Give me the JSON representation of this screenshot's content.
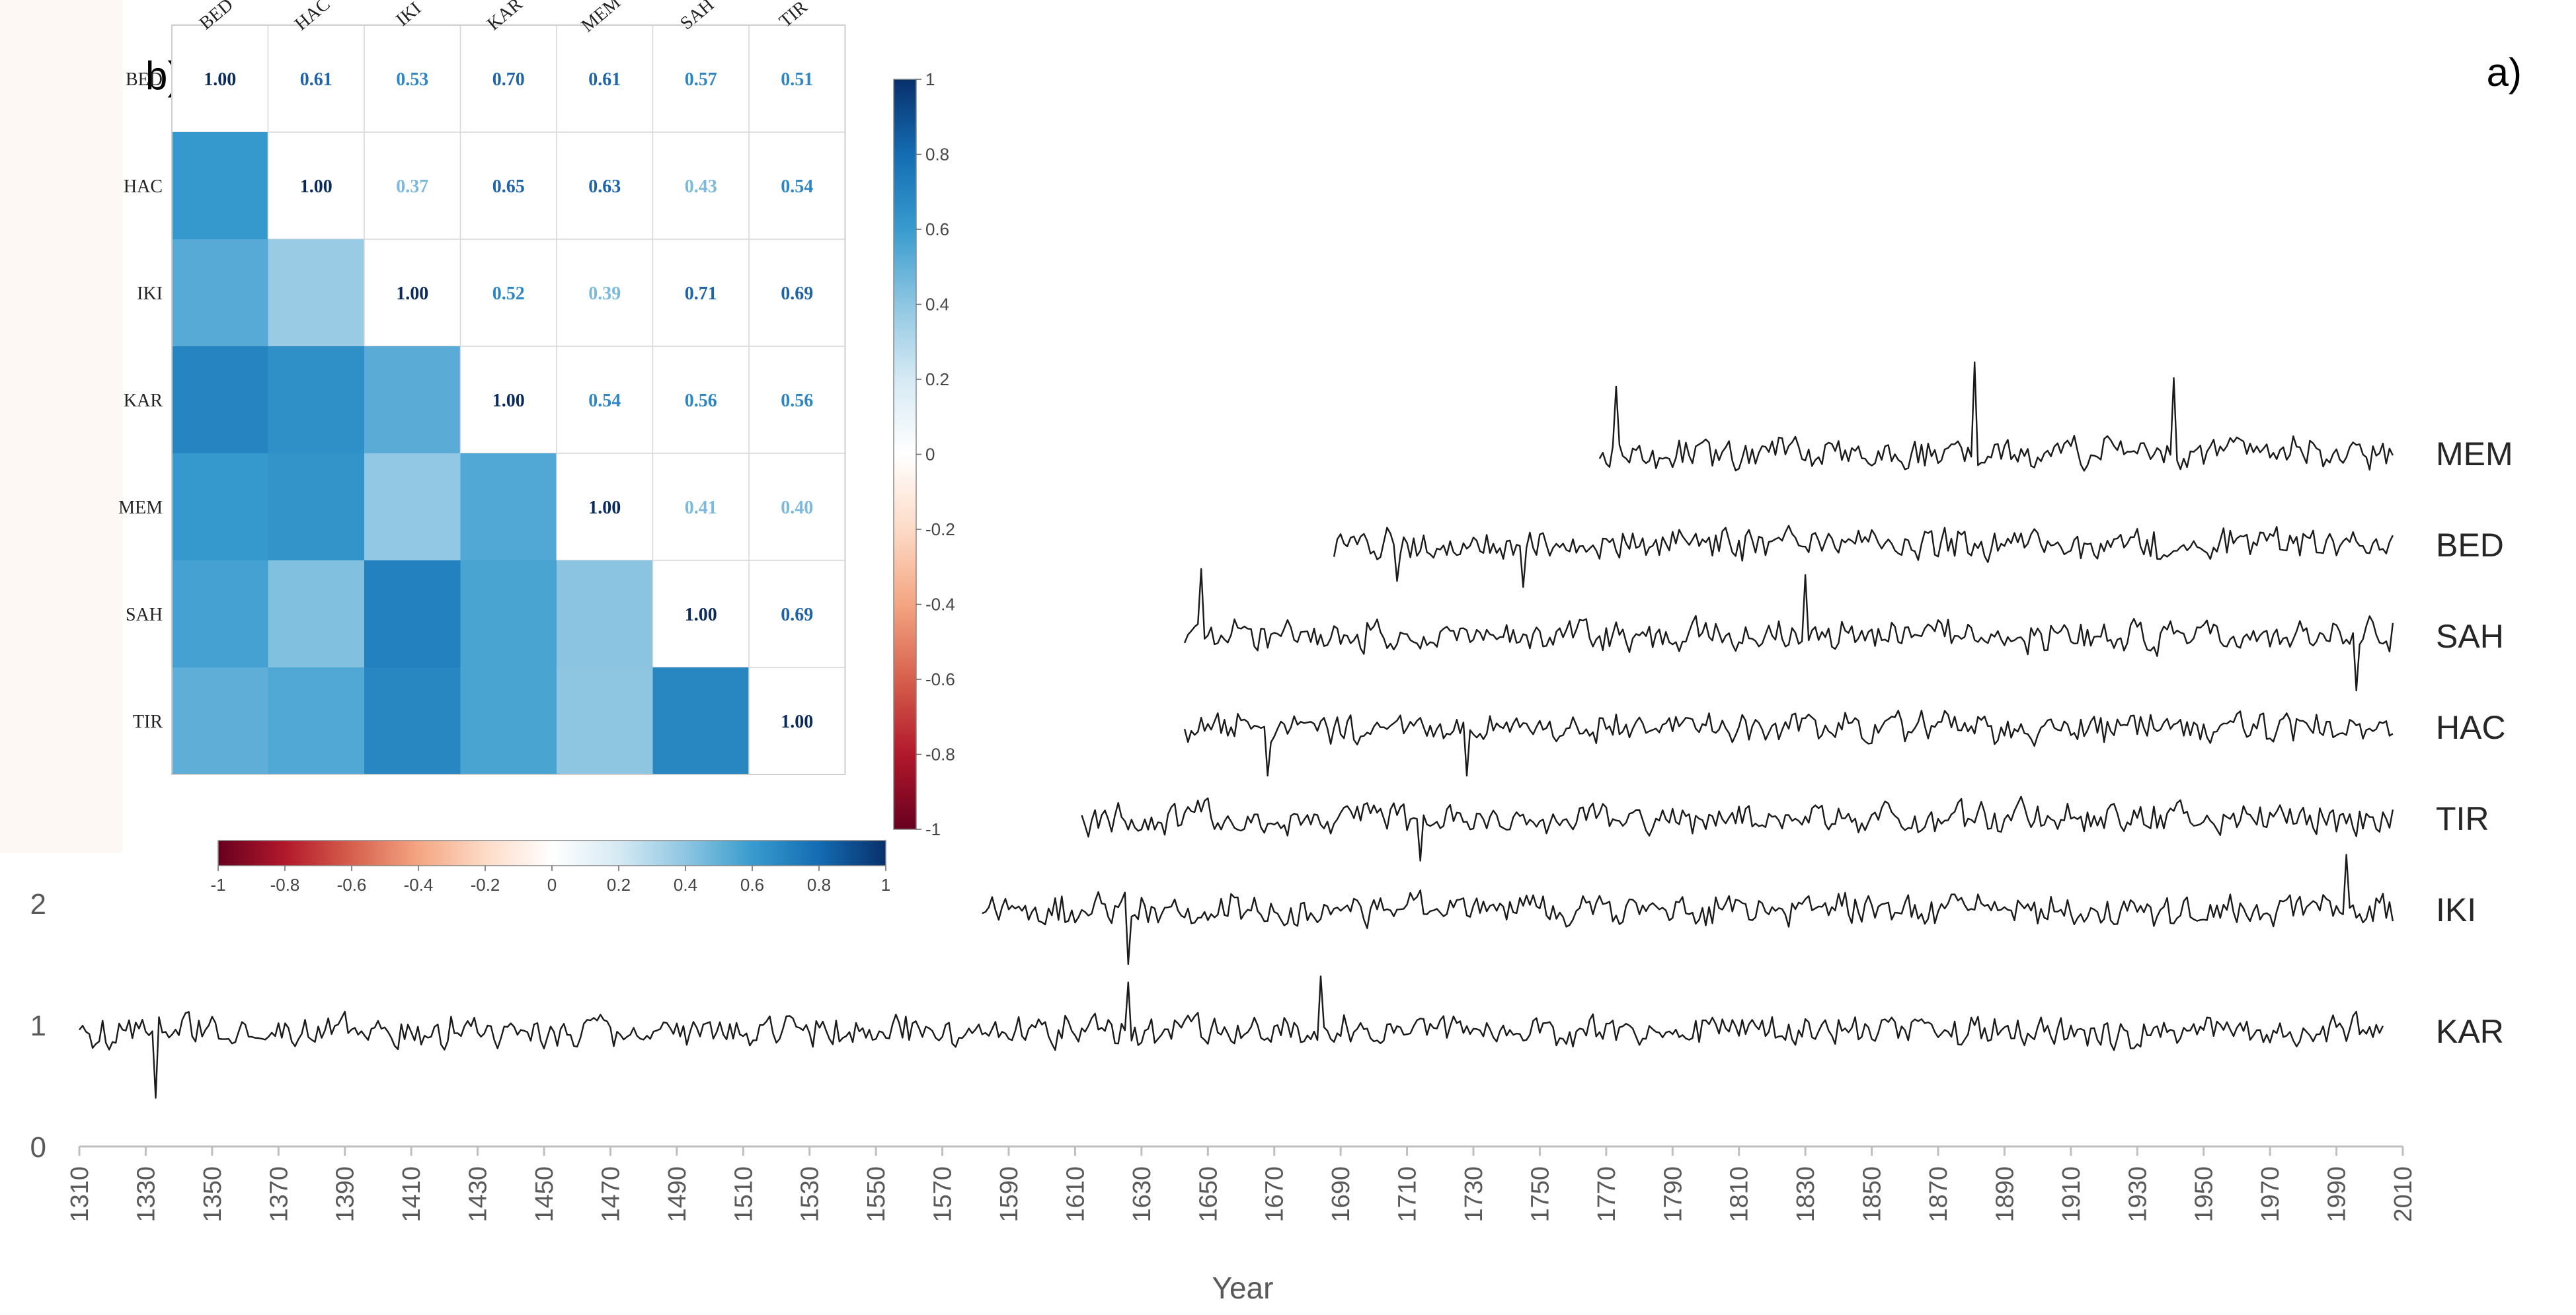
{
  "chart_data": [
    {
      "panel": "a)",
      "type": "line",
      "xlabel": "Year",
      "ylabel": "",
      "xlim": [
        1310,
        2010
      ],
      "x_ticks": [
        1310,
        1330,
        1350,
        1370,
        1390,
        1410,
        1430,
        1450,
        1470,
        1490,
        1510,
        1530,
        1550,
        1570,
        1590,
        1610,
        1630,
        1650,
        1670,
        1690,
        1710,
        1730,
        1750,
        1770,
        1790,
        1810,
        1830,
        1850,
        1870,
        1890,
        1910,
        1930,
        1950,
        1970,
        1990,
        2010
      ],
      "y_ticks": [
        0,
        1,
        2
      ],
      "ylim": [
        0,
        2
      ],
      "line_color": "#1a1a1a",
      "series": [
        {
          "name": "MEM",
          "start": 1768,
          "end": 2007,
          "offset": 6,
          "spikes": [
            [
              1773,
              0.55
            ],
            [
              1881,
              0.75
            ],
            [
              1941,
              0.62
            ]
          ]
        },
        {
          "name": "BED",
          "start": 1688,
          "end": 2007,
          "offset": 5,
          "spikes": [
            [
              1745,
              -0.35
            ],
            [
              1707,
              -0.3
            ]
          ]
        },
        {
          "name": "SAH",
          "start": 1643,
          "end": 2007,
          "offset": 4,
          "spikes": [
            [
              1648,
              0.55
            ],
            [
              1830,
              0.5
            ],
            [
              1996,
              -0.45
            ]
          ]
        },
        {
          "name": "HAC",
          "start": 1643,
          "end": 2007,
          "offset": 3,
          "spikes": [
            [
              1728,
              -0.4
            ],
            [
              1668,
              -0.4
            ]
          ]
        },
        {
          "name": "TIR",
          "start": 1612,
          "end": 2007,
          "offset": 2,
          "spikes": [
            [
              1714,
              -0.35
            ]
          ]
        },
        {
          "name": "IKI",
          "start": 1582,
          "end": 2007,
          "offset": 1,
          "spikes": [
            [
              1626,
              -0.45
            ],
            [
              1993,
              -0.45
            ],
            [
              1993,
              0.45
            ]
          ]
        },
        {
          "name": "KAR",
          "start": 1310,
          "end": 2004,
          "offset": 0,
          "spikes": [
            [
              1626,
              -0.85
            ],
            [
              1626,
              0.4
            ],
            [
              1333,
              -0.55
            ],
            [
              1684,
              0.45
            ]
          ]
        }
      ]
    },
    {
      "panel": "b)",
      "type": "heatmap",
      "labels": [
        "BED",
        "HAC",
        "IKI",
        "KAR",
        "MEM",
        "SAH",
        "TIR"
      ],
      "matrix": [
        [
          1.0,
          0.61,
          0.53,
          0.7,
          0.61,
          0.57,
          0.51
        ],
        [
          0.61,
          1.0,
          0.37,
          0.65,
          0.63,
          0.43,
          0.54
        ],
        [
          0.53,
          0.37,
          1.0,
          0.52,
          0.39,
          0.71,
          0.69
        ],
        [
          0.7,
          0.65,
          0.52,
          1.0,
          0.54,
          0.56,
          0.56
        ],
        [
          0.61,
          0.63,
          0.39,
          0.54,
          1.0,
          0.41,
          0.4
        ],
        [
          0.57,
          0.43,
          0.71,
          0.56,
          0.41,
          1.0,
          0.69
        ],
        [
          0.51,
          0.54,
          0.69,
          0.56,
          0.4,
          0.69,
          1.0
        ]
      ],
      "upper_display": "numbers",
      "lower_display": "colors",
      "color_range": [
        -1,
        1
      ],
      "colorbar_vertical_ticks": [
        "1",
        "0.8",
        "0.6",
        "0.4",
        "0.2",
        "0",
        "-0.2",
        "-0.4",
        "-0.6",
        "-0.8",
        "-1"
      ],
      "colorbar_horizontal_ticks": [
        "-1",
        "-0.8",
        "-0.6",
        "-0.4",
        "-0.2",
        "0",
        "0.2",
        "0.4",
        "0.6",
        "0.8",
        "1"
      ]
    }
  ]
}
